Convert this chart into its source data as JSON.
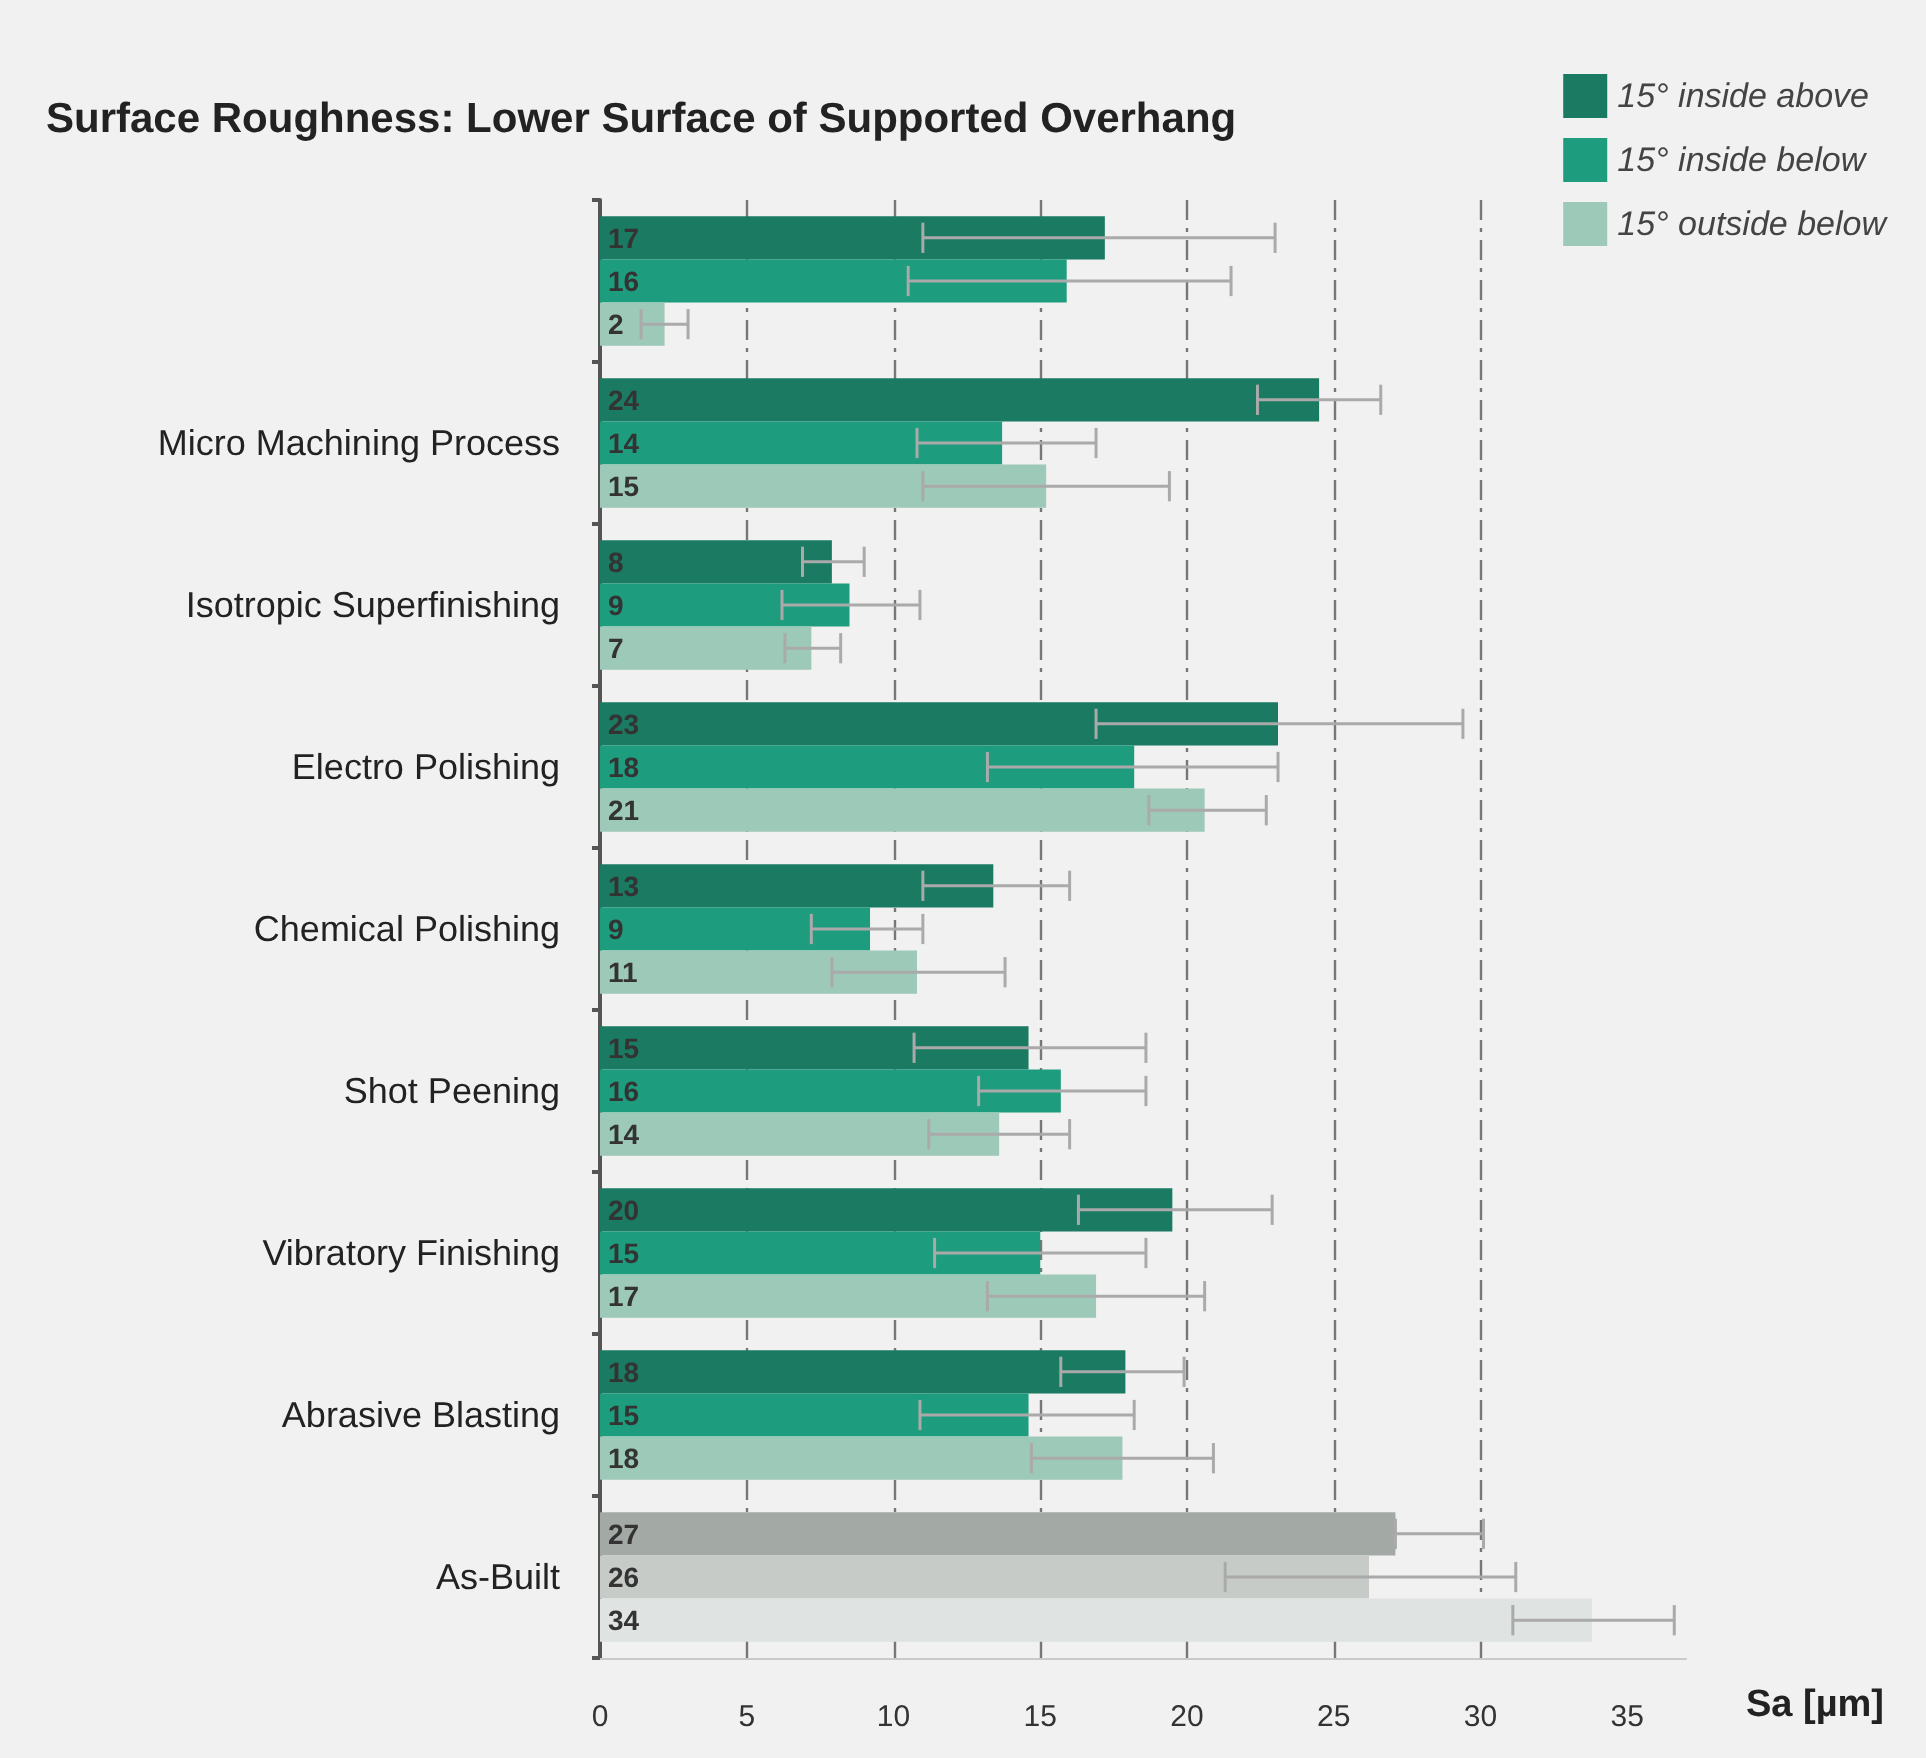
{
  "chart_data": {
    "type": "bar",
    "orientation": "horizontal",
    "title": "Surface Roughness: Lower Surface of Supported Overhang",
    "xlabel": "Sa [µm]",
    "categories": [
      null,
      "Micro Machining Process",
      "Isotropic Superfinishing",
      "Electro Polishing",
      "Chemical Polishing",
      "Shot Peening",
      "Vibratory Finishing",
      "Abrasive Blasting",
      "As-Built"
    ],
    "series": [
      {
        "name": "15° inside above",
        "color": "#1a7a62",
        "colors": [
          "#1a7a62",
          "#1a7a62",
          "#1a7a62",
          "#1a7a62",
          "#1a7a62",
          "#1a7a62",
          "#1a7a62",
          "#1a7a62",
          "#a3aaa6"
        ],
        "values": [
          17.2,
          24.5,
          7.9,
          23.1,
          13.4,
          14.6,
          19.5,
          17.9,
          27.1
        ],
        "value_labels": [
          "17",
          "24",
          "8",
          "23",
          "13",
          "15",
          "20",
          "18",
          "27"
        ],
        "errors": [
          [
            11.0,
            23.0
          ],
          [
            22.4,
            26.6
          ],
          [
            6.9,
            9.0
          ],
          [
            16.9,
            29.4
          ],
          [
            11.0,
            16.0
          ],
          [
            10.7,
            18.6
          ],
          [
            16.3,
            22.9
          ],
          [
            15.7,
            19.9
          ],
          [
            27.1,
            30.1
          ]
        ]
      },
      {
        "name": "15° inside below",
        "color": "#1e9c7e",
        "colors": [
          "#1e9c7e",
          "#1e9c7e",
          "#1e9c7e",
          "#1e9c7e",
          "#1e9c7e",
          "#1e9c7e",
          "#1e9c7e",
          "#1e9c7e",
          "#c6cbc8"
        ],
        "values": [
          15.9,
          13.7,
          8.5,
          18.2,
          9.2,
          15.7,
          15.0,
          14.6,
          26.2
        ],
        "value_labels": [
          "16",
          "14",
          "9",
          "18",
          "9",
          "16",
          "15",
          "15",
          "26"
        ],
        "errors": [
          [
            10.5,
            21.5
          ],
          [
            10.8,
            16.9
          ],
          [
            6.2,
            10.9
          ],
          [
            13.2,
            23.1
          ],
          [
            7.2,
            11.0
          ],
          [
            12.9,
            18.6
          ],
          [
            11.4,
            18.6
          ],
          [
            10.9,
            18.2
          ],
          [
            21.3,
            31.2
          ]
        ]
      },
      {
        "name": "15° outside below",
        "color": "#9cc9b8",
        "colors": [
          "#9cc9b8",
          "#9cc9b8",
          "#9cc9b8",
          "#9cc9b8",
          "#9cc9b8",
          "#9cc9b8",
          "#9cc9b8",
          "#9cc9b8",
          "#dfe3e1"
        ],
        "values": [
          2.2,
          15.2,
          7.2,
          20.6,
          10.8,
          13.6,
          16.9,
          17.8,
          33.8
        ],
        "value_labels": [
          "2",
          "15",
          "7",
          "21",
          "11",
          "14",
          "17",
          "18",
          "34"
        ],
        "errors": [
          [
            1.4,
            3.0
          ],
          [
            11.0,
            19.4
          ],
          [
            6.3,
            8.2
          ],
          [
            18.7,
            22.7
          ],
          [
            7.9,
            13.8
          ],
          [
            11.2,
            16.0
          ],
          [
            13.2,
            20.6
          ],
          [
            14.7,
            20.9
          ],
          [
            31.1,
            36.6
          ]
        ]
      }
    ],
    "xlim": [
      0,
      37
    ],
    "xticks": [
      0,
      5,
      10,
      15,
      20,
      25,
      30,
      35
    ],
    "grid": "x",
    "legend": "top right"
  }
}
